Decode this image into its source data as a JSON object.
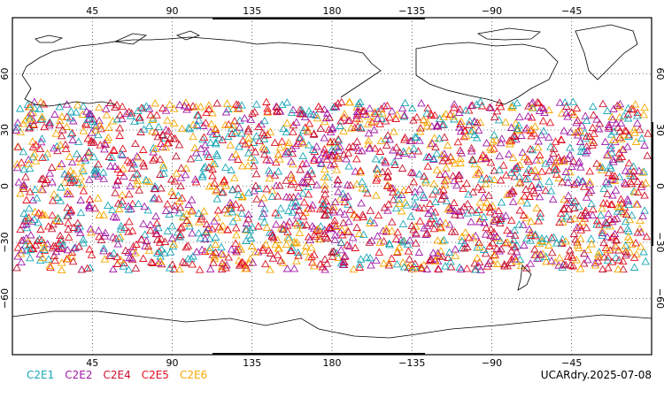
{
  "map": {
    "projection": "equirectangular",
    "lon_range": [
      0,
      360
    ],
    "lat_range": [
      -90,
      90
    ],
    "graticule": "dotted",
    "top_lon_labels": [
      "45",
      "90",
      "135",
      "180",
      "−135",
      "−90",
      "−45"
    ],
    "bottom_lon_labels": [
      "45",
      "90",
      "135",
      "180",
      "−135",
      "−90",
      "−45"
    ],
    "lat_labels": [
      "60",
      "30",
      "0",
      "−30",
      "−60"
    ],
    "lat_values": [
      60,
      30,
      0,
      -30,
      -60
    ],
    "lon_values": [
      45,
      90,
      135,
      180,
      225,
      270,
      315
    ]
  },
  "legend": [
    {
      "label": "C2E1",
      "color": "#1aa7b8"
    },
    {
      "label": "C2E2",
      "color": "#a21aa8"
    },
    {
      "label": "C2E4",
      "color": "#c8102e"
    },
    {
      "label": "C2E5",
      "color": "#e4101e"
    },
    {
      "label": "C2E6",
      "color": "#f7a800"
    }
  ],
  "stamp": "UCARdry.2025-07-08",
  "observations": {
    "marker": "open-triangle",
    "lat_extent": [
      -45,
      45
    ],
    "colors": [
      "#1aa7b8",
      "#a21aa8",
      "#c8102e",
      "#e4101e",
      "#f7a800"
    ]
  }
}
